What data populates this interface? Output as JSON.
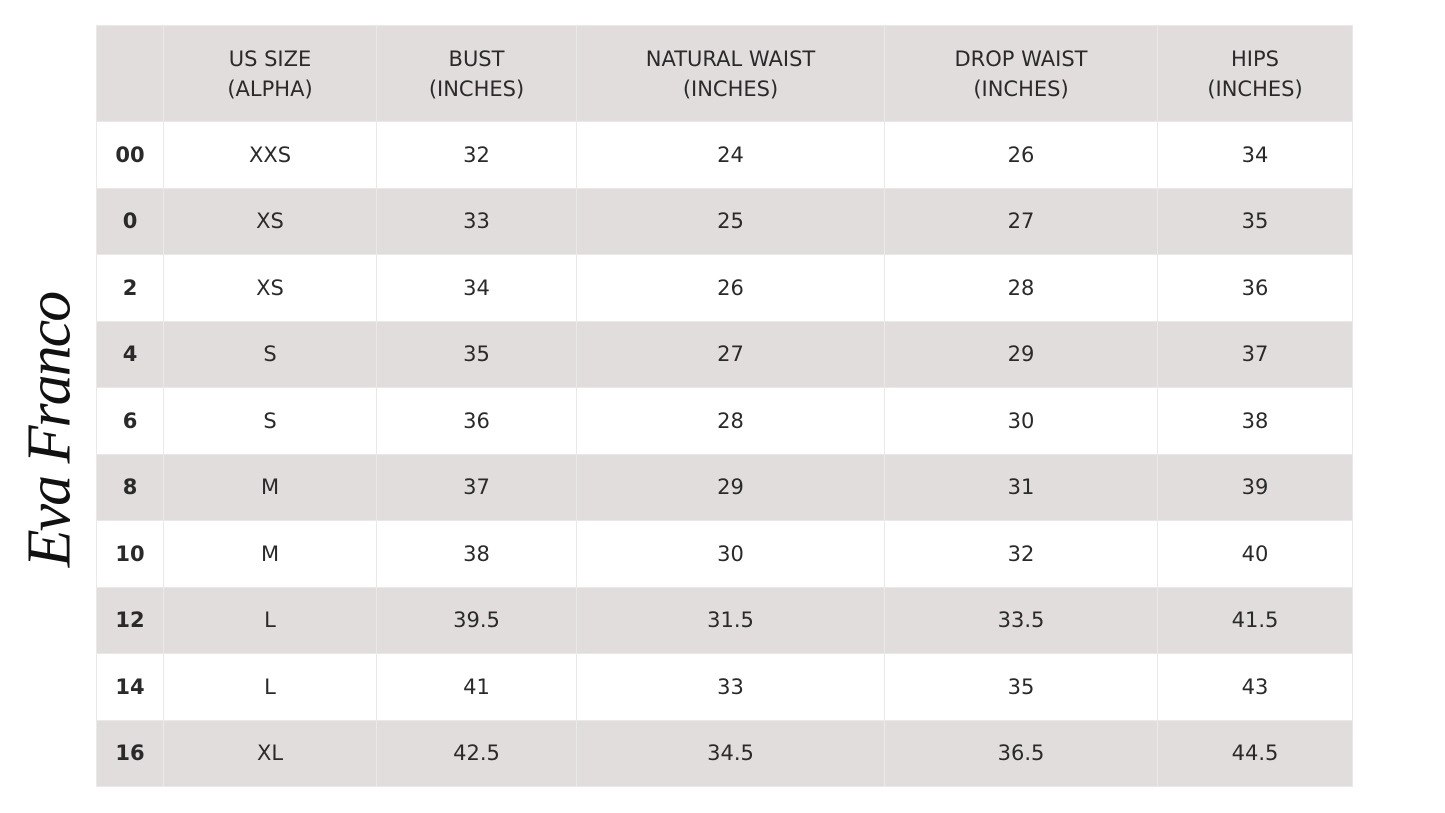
{
  "logo": "Eva Franco",
  "table": {
    "header": [
      [
        "US SIZE",
        "(ALPHA)"
      ],
      [
        "BUST",
        "(INCHES)"
      ],
      [
        "NATURAL WAIST",
        "(INCHES)"
      ],
      [
        "DROP WAIST",
        "(INCHES)"
      ],
      [
        "HIPS",
        "(INCHES)"
      ]
    ],
    "rows": [
      [
        "00",
        "XXS",
        "32",
        "24",
        "26",
        "34"
      ],
      [
        "0",
        "XS",
        "33",
        "25",
        "27",
        "35"
      ],
      [
        "2",
        "XS",
        "34",
        "26",
        "28",
        "36"
      ],
      [
        "4",
        "S",
        "35",
        "27",
        "29",
        "37"
      ],
      [
        "6",
        "S",
        "36",
        "28",
        "30",
        "38"
      ],
      [
        "8",
        "M",
        "37",
        "29",
        "31",
        "39"
      ],
      [
        "10",
        "M",
        "38",
        "30",
        "32",
        "40"
      ],
      [
        "12",
        "L",
        "39.5",
        "31.5",
        "33.5",
        "41.5"
      ],
      [
        "14",
        "L",
        "41",
        "33",
        "35",
        "43"
      ],
      [
        "16",
        "XL",
        "42.5",
        "34.5",
        "36.5",
        "44.5"
      ]
    ]
  }
}
